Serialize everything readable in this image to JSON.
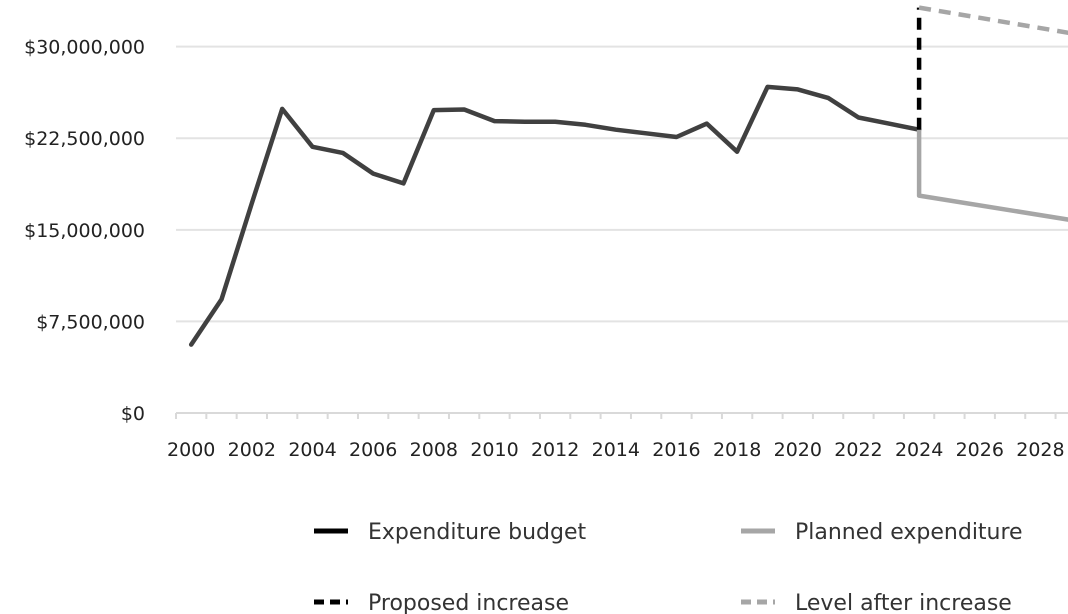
{
  "chart_data": {
    "type": "line",
    "title": "",
    "xlabel": "",
    "ylabel": "",
    "ylim": [
      0,
      33000000
    ],
    "xlim": [
      2000,
      2029
    ],
    "yticks": [
      {
        "value": 0,
        "label": "$0"
      },
      {
        "value": 7500000,
        "label": "$7,500,000"
      },
      {
        "value": 15000000,
        "label": "$15,000,000"
      },
      {
        "value": 22500000,
        "label": "$22,500,000"
      },
      {
        "value": 30000000,
        "label": "$30,000,000"
      }
    ],
    "xticks": [
      "2000",
      "2002",
      "2004",
      "2006",
      "2008",
      "2010",
      "2012",
      "2014",
      "2016",
      "2018",
      "2020",
      "2022",
      "2024",
      "2026",
      "2028"
    ],
    "grid": true,
    "legend_position": "bottom",
    "series": [
      {
        "name": "Expenditure budget",
        "color": "#404040",
        "dash": "solid",
        "x": [
          2000,
          2001,
          2002,
          2003,
          2004,
          2005,
          2006,
          2007,
          2008,
          2009,
          2010,
          2011,
          2012,
          2013,
          2014,
          2015,
          2016,
          2017,
          2018,
          2019,
          2020,
          2021,
          2022,
          2023,
          2024
        ],
        "y": [
          5600000,
          9300000,
          17200000,
          24900000,
          21800000,
          21300000,
          19600000,
          18800000,
          24800000,
          24850000,
          23900000,
          23850000,
          23850000,
          23600000,
          23200000,
          22900000,
          22600000,
          23700000,
          21400000,
          26700000,
          26500000,
          25800000,
          24200000,
          23700000,
          23200000
        ]
      },
      {
        "name": "Planned expenditure",
        "color": "#a6a6a6",
        "dash": "solid",
        "x": [
          2024,
          2024,
          2029
        ],
        "y": [
          23200000,
          17800000,
          15800000
        ]
      },
      {
        "name": "Proposed increase",
        "color": "#000000",
        "dash": "dashed",
        "x": [
          2024,
          2024
        ],
        "y": [
          23200000,
          33200000
        ]
      },
      {
        "name": "Level after increase",
        "color": "#a6a6a6",
        "dash": "dashed",
        "x": [
          2024,
          2029
        ],
        "y": [
          33200000,
          31100000
        ]
      }
    ],
    "legend": [
      {
        "label": "Expenditure budget",
        "color": "#000000",
        "dash": "solid"
      },
      {
        "label": "Planned expenditure",
        "color": "#a6a6a6",
        "dash": "solid"
      },
      {
        "label": "Proposed increase",
        "color": "#000000",
        "dash": "dashed"
      },
      {
        "label": "Level after increase",
        "color": "#a6a6a6",
        "dash": "dashed"
      }
    ]
  }
}
